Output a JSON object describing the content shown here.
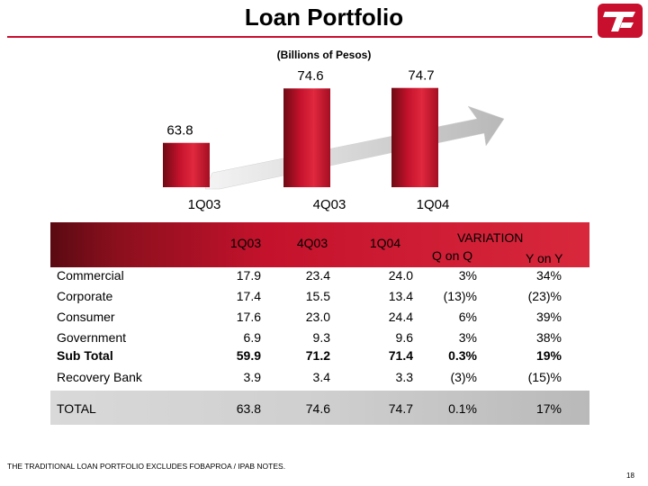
{
  "title": "Loan Portfolio",
  "subtitle": "(Billions of Pesos)",
  "colors": {
    "accent": "#c8102e",
    "bar": "#c4122c"
  },
  "logo": {
    "icon": "banorte-logo-icon"
  },
  "chart_data": {
    "type": "bar",
    "categories": [
      "1Q03",
      "4Q03",
      "1Q04"
    ],
    "values": [
      63.8,
      74.6,
      74.7
    ],
    "value_labels": [
      "63.8",
      "74.6",
      "74.7"
    ],
    "title": "",
    "xlabel": "",
    "ylabel": "",
    "ylim": [
      0,
      80
    ],
    "grid": false,
    "trend_arrow": true
  },
  "table": {
    "columns": [
      "1Q03",
      "4Q03",
      "1Q04"
    ],
    "variation_title": "VARIATION",
    "variation_cols": [
      "Q on Q",
      "Y on Y"
    ],
    "rows": [
      {
        "label": "Commercial",
        "values": [
          "17.9",
          "23.4",
          "24.0"
        ],
        "qq": "3%",
        "yy": "34%",
        "bold": false
      },
      {
        "label": "Corporate",
        "values": [
          "17.4",
          "15.5",
          "13.4"
        ],
        "qq": "(13)%",
        "yy": "(23)%",
        "bold": false
      },
      {
        "label": "Consumer",
        "values": [
          "17.6",
          "23.0",
          "24.4"
        ],
        "qq": "6%",
        "yy": "39%",
        "bold": false
      },
      {
        "label": "Government",
        "values": [
          "6.9",
          "9.3",
          "9.6"
        ],
        "qq": "3%",
        "yy": "38%",
        "bold": false
      },
      {
        "label": "Sub Total",
        "values": [
          "59.9",
          "71.2",
          "71.4"
        ],
        "qq": "0.3%",
        "yy": "19%",
        "bold": true
      },
      {
        "label": "Recovery Bank",
        "values": [
          "3.9",
          "3.4",
          "3.3"
        ],
        "qq": "(3)%",
        "yy": "(15)%",
        "bold": false
      },
      {
        "label": "TOTAL",
        "values": [
          "63.8",
          "74.6",
          "74.7"
        ],
        "qq": "0.1%",
        "yy": "17%",
        "bold": false
      }
    ]
  },
  "footnote": "THE TRADITIONAL LOAN PORTFOLIO EXCLUDES FOBAPROA / IPAB NOTES.",
  "page_number": "18"
}
